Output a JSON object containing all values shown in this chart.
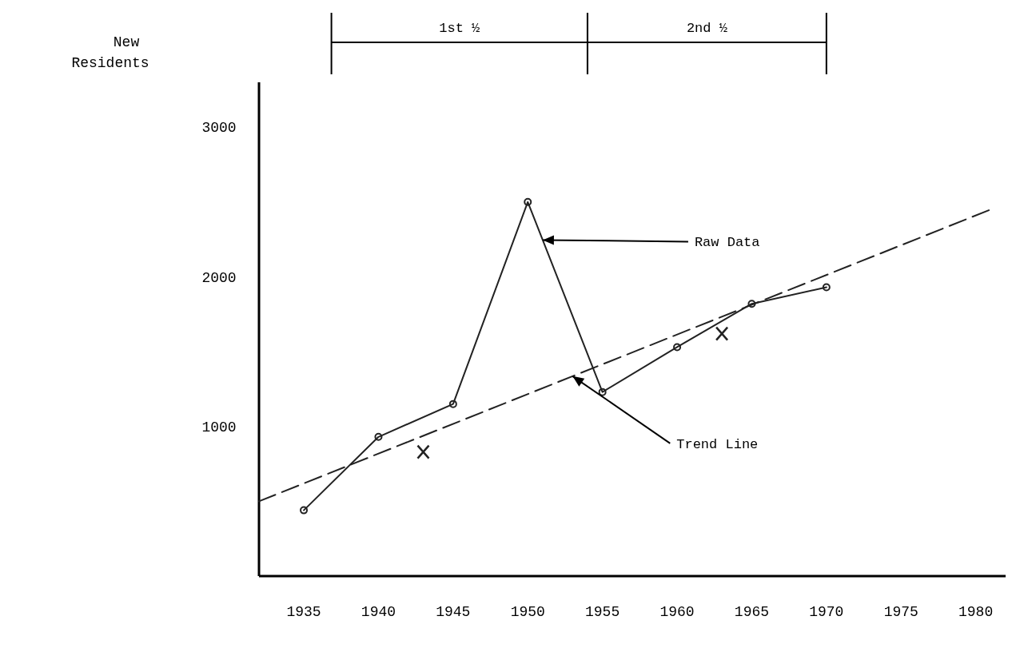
{
  "chart_data": {
    "type": "line",
    "ylabel": "New Residents",
    "xlim": [
      1932,
      1982
    ],
    "xticks": [
      1935,
      1940,
      1945,
      1950,
      1955,
      1960,
      1965,
      1970,
      1975,
      1980
    ],
    "ylim": [
      0,
      3300
    ],
    "yticks": [
      1000,
      2000,
      3000
    ],
    "grid": false,
    "series": [
      {
        "color": "#222222",
        "marker": "circle",
        "line_style": "solid",
        "x": [
          1935,
          1940,
          1945,
          1950,
          1955,
          1960,
          1965,
          1970
        ],
        "values": [
          440,
          930,
          1150,
          2500,
          1230,
          1530,
          1820,
          1930
        ]
      },
      {
        "color": "#222222",
        "marker": "none",
        "line_style": "dashed",
        "x": [
          1932,
          1981
        ],
        "values": [
          500,
          2450
        ]
      },
      {
        "type": "scatter",
        "color": "#222222",
        "marker": "cross",
        "x": [
          1943,
          1963
        ],
        "values": [
          830,
          1620
        ]
      }
    ],
    "annotations": [
      "1st ½",
      "2nd ½",
      {
        "text": "Raw Data",
        "x": 1951,
        "y": 2246
      },
      {
        "text": "Trend Line",
        "x": 1953,
        "y": 1336
      }
    ]
  }
}
